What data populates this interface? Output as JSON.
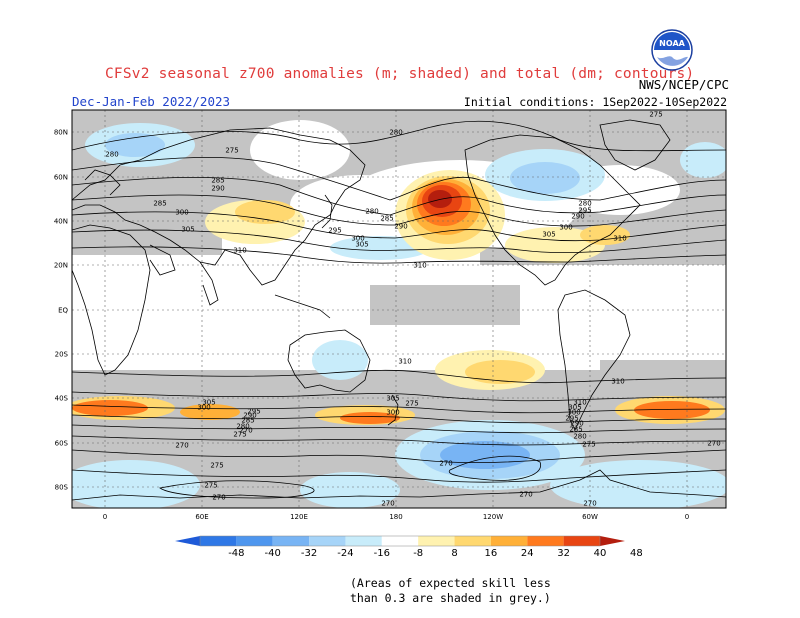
{
  "header": {
    "title": "CFSv2 seasonal z700 anomalies (m; shaded) and total (dm; contours)",
    "season": "Dec-Jan-Feb 2022/2023",
    "initial_conditions": "Initial conditions: 1Sep2022-10Sep2022",
    "agency": "NWS/NCEP/CPC",
    "logo_text": "NOAA"
  },
  "axes": {
    "lat_labels": [
      "80N",
      "60N",
      "40N",
      "20N",
      "EQ",
      "20S",
      "40S",
      "60S",
      "80S"
    ],
    "lon_labels": [
      "0",
      "60E",
      "120E",
      "180",
      "120W",
      "60W",
      "0"
    ]
  },
  "contours": [
    {
      "label": "280"
    },
    {
      "label": "280"
    },
    {
      "label": "275"
    },
    {
      "label": "285"
    },
    {
      "label": "290"
    },
    {
      "label": "285"
    },
    {
      "label": "300"
    },
    {
      "label": "305"
    },
    {
      "label": "310"
    },
    {
      "label": "295"
    },
    {
      "label": "300"
    },
    {
      "label": "305"
    },
    {
      "label": "280"
    },
    {
      "label": "285"
    },
    {
      "label": "290"
    },
    {
      "label": "310"
    },
    {
      "label": "305"
    },
    {
      "label": "300"
    },
    {
      "label": "310"
    },
    {
      "label": "275"
    },
    {
      "label": "280"
    },
    {
      "label": "290"
    },
    {
      "label": "295"
    },
    {
      "label": "310"
    },
    {
      "label": "310"
    },
    {
      "label": "305"
    },
    {
      "label": "300"
    },
    {
      "label": "295"
    },
    {
      "label": "290"
    },
    {
      "label": "285"
    },
    {
      "label": "280"
    },
    {
      "label": "275"
    },
    {
      "label": "270"
    },
    {
      "label": "305"
    },
    {
      "label": "300"
    },
    {
      "label": "310"
    },
    {
      "label": "305"
    },
    {
      "label": "300"
    },
    {
      "label": "295"
    },
    {
      "label": "290"
    },
    {
      "label": "285"
    },
    {
      "label": "280"
    },
    {
      "label": "275"
    },
    {
      "label": "270"
    },
    {
      "label": "270"
    },
    {
      "label": "275"
    },
    {
      "label": "275"
    },
    {
      "label": "270"
    },
    {
      "label": "270"
    },
    {
      "label": "270"
    },
    {
      "label": "270"
    },
    {
      "label": "275"
    },
    {
      "label": "270"
    }
  ],
  "colorbar": {
    "labels": [
      "-48",
      "-40",
      "-32",
      "-24",
      "-16",
      "-8",
      "8",
      "16",
      "24",
      "32",
      "40",
      "48"
    ],
    "colors": [
      "#1e5ad8",
      "#2f78e6",
      "#4e96ee",
      "#78b4f4",
      "#a6d4f8",
      "#c8ecfa",
      "#ffffff",
      "#fff2b0",
      "#ffd870",
      "#ffb038",
      "#ff7a1e",
      "#e84512",
      "#b41e0e"
    ]
  },
  "footnote": {
    "line1": "(Areas of expected skill less",
    "line2": "than 0.3 are shaded in grey.)"
  }
}
